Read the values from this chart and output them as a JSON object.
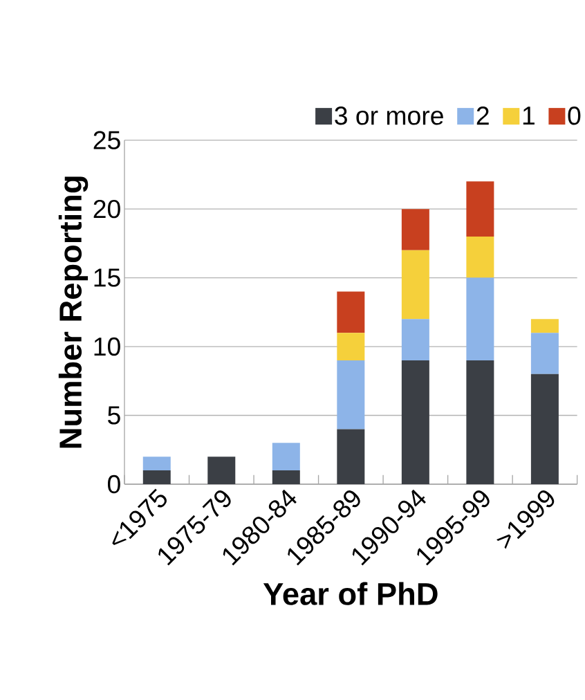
{
  "chart_data": {
    "type": "bar",
    "stacked": true,
    "xlabel": "Year of PhD",
    "ylabel": "Number Reporting",
    "categories": [
      "<1975",
      "1975-79",
      "1980-84",
      "1985-89",
      "1990-94",
      "1995-99",
      ">1999"
    ],
    "series": [
      {
        "name": "3 or more",
        "color": "#3b3f45",
        "values": [
          1,
          2,
          1,
          4,
          9,
          9,
          8
        ]
      },
      {
        "name": "2",
        "color": "#8db4e8",
        "values": [
          1,
          0,
          2,
          5,
          3,
          6,
          3
        ]
      },
      {
        "name": "1",
        "color": "#f5d03b",
        "values": [
          0,
          0,
          0,
          2,
          5,
          3,
          1
        ]
      },
      {
        "name": "0",
        "color": "#c8401f",
        "values": [
          0,
          0,
          0,
          3,
          3,
          4,
          0
        ]
      }
    ],
    "ylim": [
      0,
      25
    ],
    "yticks": [
      0,
      5,
      10,
      15,
      20,
      25
    ],
    "grid": "y",
    "legend": "top right"
  }
}
